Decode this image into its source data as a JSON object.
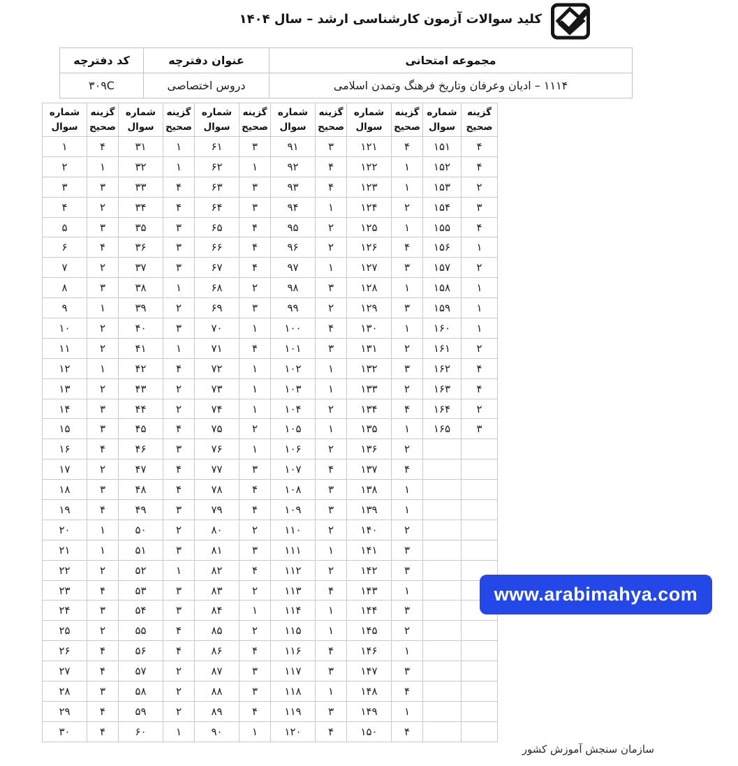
{
  "header": {
    "title": "کلید سوالات آزمون کارشناسی ارشد – سال ۱۴۰۴",
    "logo_icon": "sanjesh-organization-logo"
  },
  "info_table": {
    "columns": [
      {
        "label": "مجموعه امتحانی",
        "value": "۱۱۱۴ – ادیان وعرفان وتاریخ فرهنگ وتمدن اسلامی"
      },
      {
        "label": "عنوان دفترچه",
        "value": "دروس اختصاصی"
      },
      {
        "label": "کد دفترچه",
        "value": "۳۰۹C"
      }
    ]
  },
  "answer_table": {
    "pairs": 6,
    "question_header": [
      "شماره",
      "سوال"
    ],
    "answer_header": [
      "گزینه",
      "صحیح"
    ],
    "rows": [
      [
        "۱",
        "۴",
        "۳۱",
        "۱",
        "۶۱",
        "۳",
        "۹۱",
        "۳",
        "۱۲۱",
        "۴",
        "۱۵۱",
        "۴"
      ],
      [
        "۲",
        "۱",
        "۳۲",
        "۱",
        "۶۲",
        "۱",
        "۹۲",
        "۴",
        "۱۲۲",
        "۱",
        "۱۵۲",
        "۴"
      ],
      [
        "۳",
        "۳",
        "۳۳",
        "۴",
        "۶۳",
        "۳",
        "۹۳",
        "۴",
        "۱۲۳",
        "۱",
        "۱۵۳",
        "۲"
      ],
      [
        "۴",
        "۲",
        "۳۴",
        "۴",
        "۶۴",
        "۳",
        "۹۴",
        "۱",
        "۱۲۴",
        "۲",
        "۱۵۴",
        "۳"
      ],
      [
        "۵",
        "۳",
        "۳۵",
        "۳",
        "۶۵",
        "۴",
        "۹۵",
        "۲",
        "۱۲۵",
        "۱",
        "۱۵۵",
        "۴"
      ],
      [
        "۶",
        "۴",
        "۳۶",
        "۳",
        "۶۶",
        "۴",
        "۹۶",
        "۲",
        "۱۲۶",
        "۴",
        "۱۵۶",
        "۱"
      ],
      [
        "۷",
        "۲",
        "۳۷",
        "۳",
        "۶۷",
        "۴",
        "۹۷",
        "۱",
        "۱۲۷",
        "۳",
        "۱۵۷",
        "۲"
      ],
      [
        "۸",
        "۳",
        "۳۸",
        "۱",
        "۶۸",
        "۲",
        "۹۸",
        "۳",
        "۱۲۸",
        "۱",
        "۱۵۸",
        "۱"
      ],
      [
        "۹",
        "۱",
        "۳۹",
        "۲",
        "۶۹",
        "۳",
        "۹۹",
        "۲",
        "۱۲۹",
        "۳",
        "۱۵۹",
        "۱"
      ],
      [
        "۱۰",
        "۲",
        "۴۰",
        "۳",
        "۷۰",
        "۱",
        "۱۰۰",
        "۴",
        "۱۳۰",
        "۱",
        "۱۶۰",
        "۱"
      ],
      [
        "۱۱",
        "۲",
        "۴۱",
        "۱",
        "۷۱",
        "۴",
        "۱۰۱",
        "۳",
        "۱۳۱",
        "۲",
        "۱۶۱",
        "۲"
      ],
      [
        "۱۲",
        "۱",
        "۴۲",
        "۴",
        "۷۲",
        "۱",
        "۱۰۲",
        "۱",
        "۱۳۲",
        "۳",
        "۱۶۲",
        "۴"
      ],
      [
        "۱۳",
        "۲",
        "۴۳",
        "۲",
        "۷۳",
        "۱",
        "۱۰۳",
        "۱",
        "۱۳۳",
        "۲",
        "۱۶۳",
        "۴"
      ],
      [
        "۱۴",
        "۳",
        "۴۴",
        "۲",
        "۷۴",
        "۱",
        "۱۰۴",
        "۲",
        "۱۳۴",
        "۴",
        "۱۶۴",
        "۲"
      ],
      [
        "۱۵",
        "۳",
        "۴۵",
        "۴",
        "۷۵",
        "۲",
        "۱۰۵",
        "۱",
        "۱۳۵",
        "۱",
        "۱۶۵",
        "۳"
      ],
      [
        "۱۶",
        "۴",
        "۴۶",
        "۳",
        "۷۶",
        "۱",
        "۱۰۶",
        "۲",
        "۱۳۶",
        "۲",
        "",
        ""
      ],
      [
        "۱۷",
        "۲",
        "۴۷",
        "۴",
        "۷۷",
        "۳",
        "۱۰۷",
        "۴",
        "۱۳۷",
        "۴",
        "",
        ""
      ],
      [
        "۱۸",
        "۳",
        "۴۸",
        "۴",
        "۷۸",
        "۴",
        "۱۰۸",
        "۳",
        "۱۳۸",
        "۱",
        "",
        ""
      ],
      [
        "۱۹",
        "۴",
        "۴۹",
        "۳",
        "۷۹",
        "۴",
        "۱۰۹",
        "۳",
        "۱۳۹",
        "۱",
        "",
        ""
      ],
      [
        "۲۰",
        "۱",
        "۵۰",
        "۲",
        "۸۰",
        "۲",
        "۱۱۰",
        "۲",
        "۱۴۰",
        "۲",
        "",
        ""
      ],
      [
        "۲۱",
        "۱",
        "۵۱",
        "۳",
        "۸۱",
        "۳",
        "۱۱۱",
        "۱",
        "۱۴۱",
        "۳",
        "",
        ""
      ],
      [
        "۲۲",
        "۲",
        "۵۲",
        "۱",
        "۸۲",
        "۴",
        "۱۱۲",
        "۲",
        "۱۴۲",
        "۳",
        "",
        ""
      ],
      [
        "۲۳",
        "۴",
        "۵۳",
        "۳",
        "۸۳",
        "۲",
        "۱۱۳",
        "۴",
        "۱۴۳",
        "۱",
        "",
        ""
      ],
      [
        "۲۴",
        "۳",
        "۵۴",
        "۳",
        "۸۴",
        "۱",
        "۱۱۴",
        "۱",
        "۱۴۴",
        "۳",
        "",
        ""
      ],
      [
        "۲۵",
        "۲",
        "۵۵",
        "۴",
        "۸۵",
        "۲",
        "۱۱۵",
        "۱",
        "۱۴۵",
        "۲",
        "",
        ""
      ],
      [
        "۲۶",
        "۴",
        "۵۶",
        "۴",
        "۸۶",
        "۴",
        "۱۱۶",
        "۴",
        "۱۴۶",
        "۱",
        "",
        ""
      ],
      [
        "۲۷",
        "۴",
        "۵۷",
        "۲",
        "۸۷",
        "۳",
        "۱۱۷",
        "۳",
        "۱۴۷",
        "۳",
        "",
        ""
      ],
      [
        "۲۸",
        "۳",
        "۵۸",
        "۲",
        "۸۸",
        "۳",
        "۱۱۸",
        "۱",
        "۱۴۸",
        "۴",
        "",
        ""
      ],
      [
        "۲۹",
        "۴",
        "۵۹",
        "۲",
        "۸۹",
        "۴",
        "۱۱۹",
        "۳",
        "۱۴۹",
        "۱",
        "",
        ""
      ],
      [
        "۳۰",
        "۴",
        "۶۰",
        "۱",
        "۹۰",
        "۱",
        "۱۲۰",
        "۴",
        "۱۵۰",
        "۴",
        "",
        ""
      ]
    ]
  },
  "watermark": {
    "text": "www.arabimahya.com",
    "bg_color": "#2447e8",
    "text_color": "#ffffff"
  },
  "footer": {
    "text": "سازمان سنجش آموزش کشور"
  }
}
